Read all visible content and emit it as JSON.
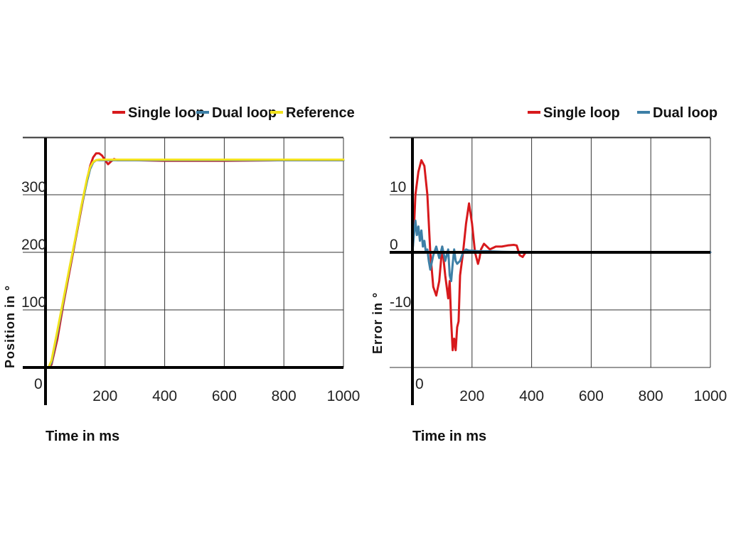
{
  "colors": {
    "single_loop": "#d7191c",
    "dual_loop": "#3d7fa6",
    "reference": "#f2e21b",
    "grid": "#333333",
    "axis": "#000000"
  },
  "chart_data": [
    {
      "type": "line",
      "title": "",
      "xlabel": "Time in ms",
      "ylabel": "Position in °",
      "xlim": [
        0,
        1000
      ],
      "ylim": [
        0,
        400
      ],
      "xticks": [
        200,
        400,
        600,
        800,
        1000
      ],
      "xtick_labels": [
        "200",
        "400",
        "600",
        "800",
        "1000"
      ],
      "yticks": [
        100,
        200,
        300
      ],
      "ytick_labels": [
        "100",
        "200",
        "300"
      ],
      "origin_label": "0",
      "grid": true,
      "legend": "top",
      "series": [
        {
          "name": "Single loop",
          "color_key": "single_loop",
          "x": [
            0,
            10,
            20,
            40,
            60,
            80,
            100,
            120,
            140,
            150,
            160,
            170,
            180,
            190,
            200,
            210,
            220,
            230,
            240,
            260,
            300,
            400,
            600,
            800,
            1000
          ],
          "y": [
            0,
            0,
            5,
            50,
            110,
            165,
            220,
            275,
            328,
            350,
            365,
            372,
            372,
            368,
            360,
            353,
            358,
            362,
            360,
            360,
            360,
            359,
            359,
            360,
            360
          ]
        },
        {
          "name": "Dual loop",
          "color_key": "dual_loop",
          "x": [
            0,
            10,
            20,
            40,
            60,
            80,
            100,
            120,
            140,
            150,
            160,
            170,
            180,
            190,
            200,
            220,
            240,
            300,
            400,
            600,
            800,
            1000
          ],
          "y": [
            0,
            0,
            8,
            60,
            115,
            170,
            222,
            278,
            325,
            345,
            356,
            360,
            360,
            360,
            360,
            360,
            360,
            360,
            360,
            360,
            360,
            360
          ]
        },
        {
          "name": "Reference",
          "color_key": "reference",
          "x": [
            0,
            10,
            20,
            40,
            60,
            80,
            100,
            120,
            140,
            150,
            160,
            170,
            180,
            200,
            240,
            300,
            400,
            600,
            800,
            1000
          ],
          "y": [
            0,
            0,
            12,
            65,
            118,
            172,
            224,
            280,
            330,
            348,
            357,
            360,
            361,
            361,
            361,
            361,
            361,
            361,
            361,
            361
          ]
        }
      ]
    },
    {
      "type": "line",
      "title": "",
      "xlabel": "Time in ms",
      "ylabel": "Error in °",
      "xlim": [
        0,
        1000
      ],
      "ylim": [
        -20,
        20
      ],
      "xticks": [
        200,
        400,
        600,
        800,
        1000
      ],
      "xtick_labels": [
        "200",
        "400",
        "600",
        "800",
        "1000"
      ],
      "yticks": [
        -10,
        0,
        10
      ],
      "ytick_labels": [
        "-10",
        "0",
        "10"
      ],
      "origin_label": "0",
      "grid": true,
      "legend": "top",
      "series": [
        {
          "name": "Single loop",
          "color_key": "single_loop",
          "x": [
            0,
            5,
            10,
            20,
            30,
            40,
            50,
            60,
            70,
            80,
            90,
            100,
            110,
            120,
            125,
            130,
            135,
            140,
            145,
            150,
            155,
            160,
            170,
            180,
            190,
            200,
            210,
            220,
            225,
            230,
            240,
            250,
            260,
            280,
            300,
            320,
            340,
            350,
            360,
            370,
            380,
            390,
            400,
            500,
            600,
            800,
            1000
          ],
          "y": [
            0,
            4,
            10,
            14,
            16,
            15,
            10,
            0,
            -6,
            -7.5,
            -5,
            1,
            -4,
            -8,
            -5,
            -12,
            -17,
            -15,
            -17,
            -13,
            -12,
            -4,
            0,
            5,
            8.5,
            5,
            0,
            -2,
            -1,
            0.5,
            1.5,
            1,
            0.5,
            1,
            1,
            1.2,
            1.3,
            1.2,
            -0.5,
            -0.8,
            0,
            0,
            0,
            0,
            0,
            0,
            0
          ]
        },
        {
          "name": "Dual loop",
          "color_key": "dual_loop",
          "x": [
            0,
            5,
            10,
            15,
            20,
            25,
            30,
            35,
            40,
            45,
            50,
            55,
            60,
            70,
            80,
            90,
            100,
            110,
            120,
            125,
            130,
            135,
            140,
            145,
            150,
            160,
            170,
            180,
            190,
            200,
            220,
            250,
            300,
            400,
            600,
            800,
            1000
          ],
          "y": [
            0,
            3,
            5.5,
            3,
            4.5,
            2,
            3.8,
            1,
            2,
            0,
            0.5,
            -1.5,
            -3,
            -0.5,
            1,
            -1,
            1,
            -1.5,
            0.5,
            -4,
            -5,
            -2,
            0.5,
            -1.5,
            -2,
            -1.5,
            0,
            0.5,
            0.3,
            0.3,
            0.2,
            0.2,
            0.1,
            0,
            0,
            0,
            0
          ]
        }
      ]
    }
  ]
}
